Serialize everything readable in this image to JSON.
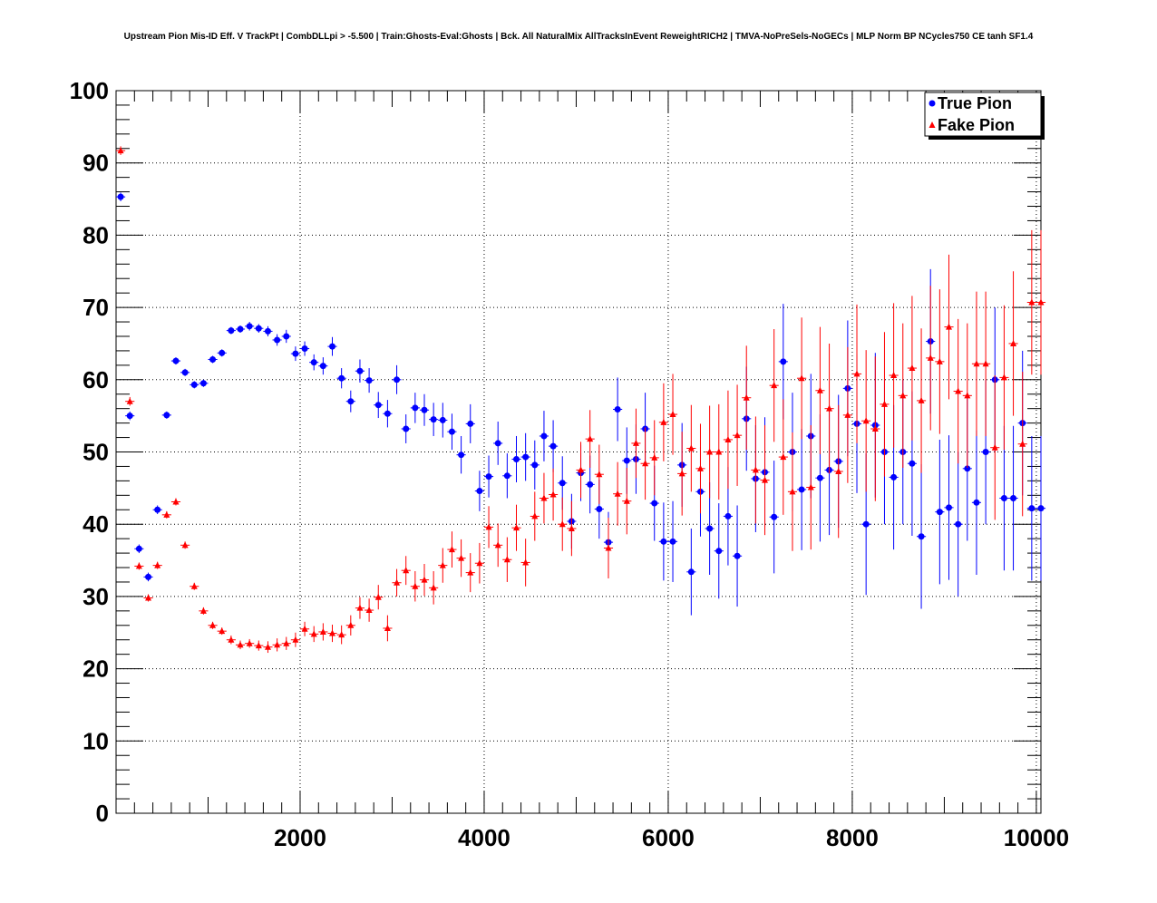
{
  "chart_data": {
    "type": "scatter",
    "title": "Upstream Pion Mis-ID Eff. V TrackPt | CombDLLpi > -5.500 | Train:Ghosts-Eval:Ghosts | Bck. All NaturalMix AllTracksInEvent ReweightRICH2 | TMVA-NoPreSels-NoGECs | MLP Norm BP NCycles750 CE tanh SF1.4",
    "xlabel": "",
    "ylabel": "",
    "xlim": [
      0,
      10050
    ],
    "ylim": [
      0,
      100
    ],
    "x_ticks": [
      2000,
      4000,
      6000,
      8000,
      10000
    ],
    "y_ticks": [
      0,
      10,
      20,
      30,
      40,
      50,
      60,
      70,
      80,
      90,
      100
    ],
    "grid": true,
    "legend_position": "top-right",
    "x": [
      50,
      150,
      250,
      350,
      450,
      550,
      650,
      750,
      850,
      950,
      1050,
      1150,
      1250,
      1350,
      1450,
      1550,
      1650,
      1750,
      1850,
      1950,
      2050,
      2150,
      2250,
      2350,
      2450,
      2550,
      2650,
      2750,
      2850,
      2950,
      3050,
      3150,
      3250,
      3350,
      3450,
      3550,
      3650,
      3750,
      3850,
      3950,
      4050,
      4150,
      4250,
      4350,
      4450,
      4550,
      4650,
      4750,
      4850,
      4950,
      5050,
      5150,
      5250,
      5350,
      5450,
      5550,
      5650,
      5750,
      5850,
      5950,
      6050,
      6150,
      6250,
      6350,
      6450,
      6550,
      6650,
      6750,
      6850,
      6950,
      7050,
      7150,
      7250,
      7350,
      7450,
      7550,
      7650,
      7750,
      7850,
      7950,
      8050,
      8150,
      8250,
      8350,
      8450,
      8550,
      8650,
      8750,
      8850,
      8950,
      9050,
      9150,
      9250,
      9350,
      9450,
      9550,
      9650,
      9750,
      9850,
      9950,
      10050
    ],
    "series": [
      {
        "name": "True Pion",
        "color": "#0000ff",
        "marker": "circle",
        "values": [
          85.3,
          55.0,
          36.6,
          32.7,
          42.0,
          55.1,
          62.6,
          61.0,
          59.3,
          59.5,
          62.8,
          63.7,
          66.8,
          67.0,
          67.4,
          67.1,
          66.7,
          65.5,
          66.0,
          63.6,
          64.3,
          62.4,
          61.9,
          64.6,
          60.2,
          57.0,
          61.2,
          59.9,
          56.5,
          55.3,
          60.0,
          53.2,
          56.1,
          55.8,
          54.5,
          54.4,
          52.8,
          49.6,
          53.9,
          44.6,
          46.6,
          51.2,
          46.7,
          49.0,
          49.3,
          48.2,
          52.2,
          50.8,
          45.7,
          40.4,
          47.1,
          45.5,
          42.1,
          37.5,
          55.9,
          48.8,
          49.0,
          53.2,
          42.9,
          37.6,
          37.6,
          48.2,
          33.4,
          44.5,
          39.4,
          36.3,
          41.1,
          35.6,
          54.6,
          46.3,
          47.2,
          41.0,
          62.5,
          50.0,
          44.8,
          52.2,
          46.4,
          47.5,
          48.7,
          58.8,
          53.9,
          40.0,
          53.7,
          50.0,
          46.5,
          50.0,
          48.4,
          38.3,
          65.3,
          41.7,
          42.3,
          40.0,
          47.7,
          43.0,
          50.0,
          60.0,
          43.6,
          43.6,
          54.0,
          42.2,
          42.2
        ],
        "errors": [
          0.6,
          0.6,
          0.6,
          0.6,
          0.6,
          0.5,
          0.5,
          0.5,
          0.5,
          0.5,
          0.5,
          0.5,
          0.5,
          0.5,
          0.6,
          0.6,
          0.7,
          0.8,
          0.9,
          1.0,
          1.0,
          1.1,
          1.2,
          1.3,
          1.4,
          1.5,
          1.6,
          1.7,
          1.8,
          1.9,
          2.0,
          2.0,
          2.1,
          2.2,
          2.3,
          2.4,
          2.5,
          2.6,
          2.7,
          2.8,
          2.9,
          3.0,
          3.1,
          3.2,
          3.3,
          3.4,
          3.5,
          3.6,
          3.7,
          3.8,
          3.9,
          4.0,
          4.1,
          4.2,
          4.4,
          4.6,
          4.8,
          5.0,
          5.2,
          5.4,
          5.6,
          5.8,
          6.0,
          6.2,
          6.4,
          6.6,
          6.8,
          7.0,
          7.2,
          7.4,
          7.6,
          7.8,
          8.0,
          8.2,
          8.4,
          8.6,
          8.8,
          9.0,
          9.2,
          9.4,
          9.6,
          9.8,
          10.0,
          10.0,
          10.0,
          10.0,
          10.0,
          10.0,
          10.0,
          10.0,
          10.0,
          10.0,
          10.0,
          10.0,
          10.0,
          10.0,
          10.0,
          10.0,
          10.0,
          10.0,
          10.0
        ]
      },
      {
        "name": "Fake Pion",
        "color": "#ff0000",
        "marker": "triangle",
        "values": [
          91.7,
          57.0,
          34.2,
          29.8,
          34.3,
          41.3,
          43.1,
          37.1,
          31.4,
          28.0,
          26.0,
          25.2,
          24.0,
          23.3,
          23.5,
          23.2,
          23.0,
          23.3,
          23.5,
          24.0,
          25.5,
          24.8,
          25.1,
          24.9,
          24.7,
          26.0,
          28.4,
          28.1,
          29.9,
          25.6,
          31.9,
          33.6,
          31.4,
          32.3,
          31.2,
          34.3,
          36.5,
          35.3,
          33.3,
          34.6,
          39.6,
          37.1,
          35.1,
          39.5,
          34.7,
          41.1,
          43.6,
          44.1,
          40.0,
          39.4,
          47.5,
          51.8,
          46.9,
          36.7,
          44.2,
          43.2,
          51.2,
          48.4,
          49.2,
          54.1,
          55.2,
          47.0,
          50.5,
          47.7,
          50.0,
          50.0,
          51.7,
          52.3,
          57.5,
          47.5,
          46.1,
          59.2,
          49.3,
          44.5,
          60.2,
          45.1,
          58.5,
          56.0,
          47.3,
          55.1,
          60.8,
          54.3,
          53.2,
          56.6,
          60.6,
          57.8,
          61.6,
          57.1,
          63.0,
          62.5,
          67.3,
          58.4,
          57.8,
          62.2,
          62.2,
          50.6,
          60.3,
          65.0,
          51.1,
          70.7,
          70.7
        ],
        "errors": [
          0.6,
          0.6,
          0.5,
          0.5,
          0.5,
          0.5,
          0.5,
          0.5,
          0.5,
          0.5,
          0.5,
          0.5,
          0.6,
          0.6,
          0.6,
          0.7,
          0.8,
          0.9,
          0.9,
          1.0,
          1.0,
          1.1,
          1.2,
          1.2,
          1.3,
          1.4,
          1.5,
          1.6,
          1.7,
          1.8,
          1.9,
          2.0,
          2.1,
          2.2,
          2.3,
          2.4,
          2.5,
          2.6,
          2.7,
          2.8,
          2.9,
          3.0,
          3.1,
          3.2,
          3.3,
          3.4,
          3.5,
          3.6,
          3.7,
          3.8,
          3.9,
          4.0,
          4.1,
          4.2,
          4.4,
          4.6,
          4.8,
          5.0,
          5.2,
          5.4,
          5.6,
          5.8,
          6.0,
          6.2,
          6.4,
          6.6,
          6.8,
          7.0,
          7.2,
          7.4,
          7.6,
          7.8,
          8.0,
          8.2,
          8.4,
          8.6,
          8.8,
          9.0,
          9.2,
          9.4,
          9.6,
          9.8,
          10.0,
          10.0,
          10.0,
          10.0,
          10.0,
          10.0,
          10.0,
          10.0,
          10.0,
          10.0,
          10.0,
          10.0,
          10.0,
          10.0,
          10.0,
          10.0,
          10.0,
          10.0,
          10.0
        ]
      }
    ]
  }
}
